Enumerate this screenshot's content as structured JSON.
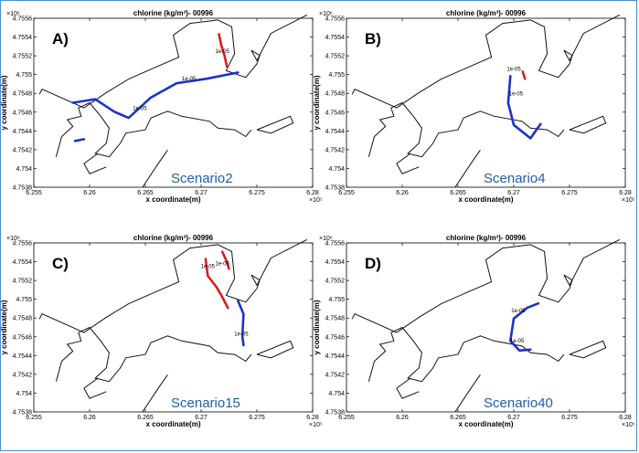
{
  "colors": {
    "coast": "#111111",
    "red_contour": "#d81e1e",
    "blue_contour": "#1a33c8",
    "scenario_text": "#1f5fa8",
    "frame": "#4a8fd0"
  },
  "chart_data": [
    {
      "type": "contour-map",
      "panel": "A)",
      "title": "chlorine (kg/m³)- 00996",
      "xlabel": "x coordinate(m)",
      "ylabel": "y coordinate(m)",
      "x_exponent": "×10⁵",
      "y_exponent": "×10⁶",
      "xlim": [
        6.255,
        6.28
      ],
      "ylim": [
        4.7538,
        4.7557
      ],
      "x_ticks": [
        "6.255",
        "6.26",
        "6.265",
        "6.27",
        "6.275",
        "6.28"
      ],
      "y_ticks": [
        "4.7538",
        "4.754",
        "4.7542",
        "4.7544",
        "4.7546",
        "4.7548",
        "4.755",
        "4.7552",
        "4.7554",
        "4.7556"
      ],
      "scenario_label": "Scenario2",
      "contour_levels": [
        "1e-05",
        "1e-05",
        "1e-05",
        "1e-05"
      ],
      "red_contours": [
        [
          [
            6.2716,
            4.75552
          ],
          [
            6.2718,
            4.7554
          ],
          [
            6.2721,
            4.75528
          ],
          [
            6.2723,
            4.75516
          ]
        ]
      ],
      "blue_contours": [
        [
          [
            6.2585,
            4.75475
          ],
          [
            6.2605,
            4.75479
          ],
          [
            6.2622,
            4.75465
          ],
          [
            6.2635,
            4.75458
          ],
          [
            6.2655,
            4.75481
          ],
          [
            6.2678,
            4.75497
          ],
          [
            6.2705,
            4.75502
          ],
          [
            6.2733,
            4.75509
          ]
        ],
        [
          [
            6.2587,
            4.75432
          ],
          [
            6.2595,
            4.75434
          ]
        ]
      ],
      "contour_label_positions": [
        [
          6.2719,
          4.75531
        ],
        [
          6.2645,
          4.75467
        ],
        [
          6.2689,
          4.755
        ]
      ]
    },
    {
      "type": "contour-map",
      "panel": "B)",
      "title": "chlorine (kg/m³)- 00996",
      "xlabel": "x coordinate(m)",
      "ylabel": "y coordinate(m)",
      "x_exponent": "×10⁵",
      "y_exponent": "×10⁶",
      "xlim": [
        6.255,
        6.28
      ],
      "ylim": [
        4.7538,
        4.7557
      ],
      "x_ticks": [
        "6.255",
        "6.26",
        "6.265",
        "6.27",
        "6.275",
        "6.28"
      ],
      "y_ticks": [
        "4.7538",
        "4.754",
        "4.7542",
        "4.7544",
        "4.7546",
        "4.7548",
        "4.755",
        "4.7552",
        "4.7554",
        "4.7556"
      ],
      "scenario_label": "Scenario4",
      "contour_levels": [
        "1e-05",
        "1e-05"
      ],
      "red_contours": [
        [
          [
            6.2708,
            4.7551
          ],
          [
            6.271,
            4.75502
          ]
        ]
      ],
      "blue_contours": [
        [
          [
            6.2697,
            4.75505
          ],
          [
            6.2695,
            4.75475
          ],
          [
            6.27,
            4.7545
          ],
          [
            6.2715,
            4.75435
          ],
          [
            6.2724,
            4.75451
          ]
        ]
      ],
      "contour_label_positions": [
        [
          6.27,
          4.75511
        ],
        [
          6.2702,
          4.75483
        ]
      ]
    },
    {
      "type": "contour-map",
      "panel": "C)",
      "title": "chlorine (kg/m³)- 00996",
      "xlabel": "x coordinate(m)",
      "ylabel": "y coordinate(m)",
      "x_exponent": "×10⁵",
      "y_exponent": "×10⁶",
      "xlim": [
        6.255,
        6.28
      ],
      "ylim": [
        4.7538,
        4.7557
      ],
      "x_ticks": [
        "6.255",
        "6.26",
        "6.265",
        "6.27",
        "6.275",
        "6.28"
      ],
      "y_ticks": [
        "4.7538",
        "4.754",
        "4.7542",
        "4.7544",
        "4.7546",
        "4.7548",
        "4.755",
        "4.7552",
        "4.7554",
        "4.7556"
      ],
      "scenario_label": "Scenario15",
      "contour_levels": [
        "1e-05",
        "1e-05",
        "1e-05",
        "1e-05"
      ],
      "red_contours": [
        [
          [
            6.2704,
            4.75552
          ],
          [
            6.2706,
            4.75533
          ],
          [
            6.2714,
            4.7552
          ],
          [
            6.2719,
            4.75509
          ],
          [
            6.2724,
            4.75497
          ]
        ],
        [
          [
            6.2719,
            4.7556
          ],
          [
            6.2723,
            4.75549
          ],
          [
            6.2725,
            4.75541
          ]
        ]
      ],
      "blue_contours": [
        [
          [
            6.2733,
            4.75505
          ],
          [
            6.2738,
            4.7549
          ],
          [
            6.2737,
            4.75465
          ],
          [
            6.2738,
            4.75455
          ]
        ]
      ],
      "contour_label_positions": [
        [
          6.2706,
          4.75542
        ],
        [
          6.2719,
          4.75545
        ],
        [
          6.2736,
          4.75466
        ]
      ]
    },
    {
      "type": "contour-map",
      "panel": "D)",
      "title": "chlorine (kg/m³)- 00996",
      "xlabel": "x coordinate(m)",
      "ylabel": "y coordinate(m)",
      "x_exponent": "×10⁵",
      "y_exponent": "×10⁶",
      "xlim": [
        6.255,
        6.28
      ],
      "ylim": [
        4.7538,
        4.7557
      ],
      "x_ticks": [
        "6.255",
        "6.26",
        "6.265",
        "6.27",
        "6.275",
        "6.28"
      ],
      "y_ticks": [
        "4.7538",
        "4.754",
        "4.7542",
        "4.7544",
        "4.7546",
        "4.7548",
        "4.755",
        "4.7552",
        "4.7554",
        "4.7556"
      ],
      "scenario_label": "Scenario40",
      "contour_levels": [
        "1e-05",
        "1e-05"
      ],
      "red_contours": [],
      "blue_contours": [
        [
          [
            6.2722,
            4.75502
          ],
          [
            6.2712,
            4.75497
          ],
          [
            6.27,
            4.75485
          ],
          [
            6.2697,
            4.7546
          ],
          [
            6.2705,
            4.75449
          ],
          [
            6.2715,
            4.7545
          ]
        ]
      ],
      "contour_label_positions": [
        [
          6.2704,
          4.75492
        ],
        [
          6.2703,
          4.75458
        ]
      ]
    }
  ]
}
